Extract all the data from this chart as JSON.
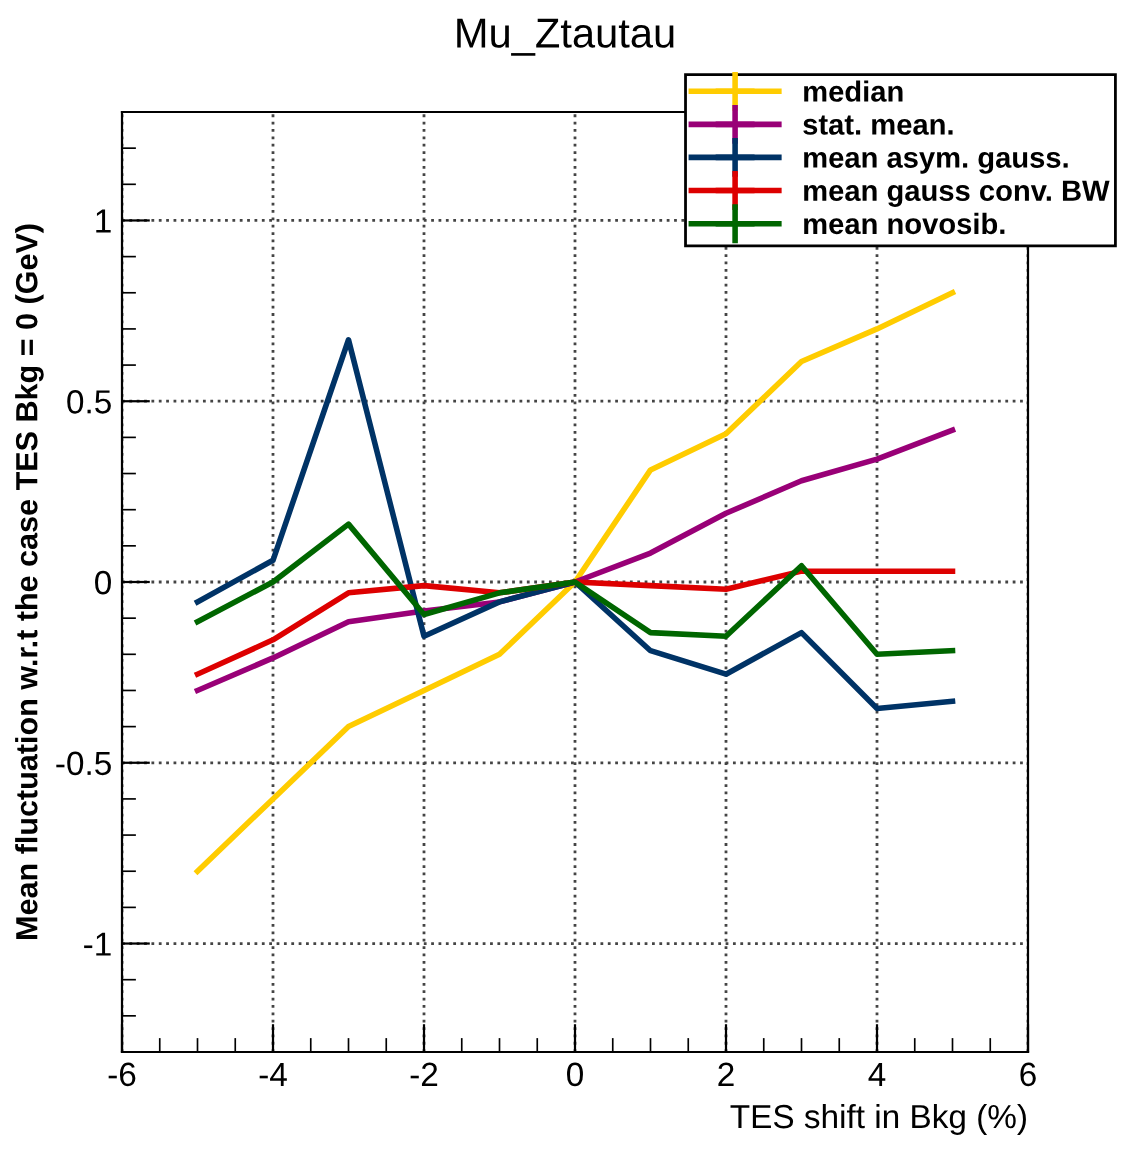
{
  "chart_data": {
    "type": "line",
    "title": "Mu_Ztautau",
    "xlabel": "TES shift in Bkg (%)",
    "ylabel": "Mean fluctuation w.r.t the case TES Bkg = 0 (GeV)",
    "x": [
      -5,
      -4,
      -3,
      -2,
      -1,
      0,
      1,
      2,
      3,
      4,
      5
    ],
    "series": [
      {
        "name": "median",
        "color": "#ffcc00",
        "values": [
          -0.8,
          -0.6,
          -0.4,
          -0.3,
          -0.2,
          0,
          0.31,
          0.41,
          0.61,
          0.7,
          0.8
        ]
      },
      {
        "name": "stat. mean.",
        "color": "#990077",
        "values": [
          -0.3,
          -0.21,
          -0.11,
          -0.08,
          -0.055,
          0,
          0.08,
          0.19,
          0.28,
          0.34,
          0.42
        ]
      },
      {
        "name": "mean asym. gauss.",
        "color": "#003366",
        "values": [
          -0.055,
          0.06,
          0.67,
          -0.15,
          -0.055,
          0,
          -0.19,
          -0.255,
          -0.14,
          -0.35,
          -0.33
        ]
      },
      {
        "name": "mean gauss conv. BW",
        "color": "#dd0000",
        "values": [
          -0.255,
          -0.16,
          -0.03,
          -0.01,
          -0.03,
          0,
          -0.01,
          -0.02,
          0.03,
          0.03,
          0.03
        ]
      },
      {
        "name": "mean novosib.",
        "color": "#006600",
        "values": [
          -0.11,
          0,
          0.16,
          -0.09,
          -0.03,
          0,
          -0.14,
          -0.15,
          0.045,
          -0.2,
          -0.19
        ]
      }
    ],
    "xlim": [
      -6,
      6
    ],
    "xticks": [
      -6,
      -4,
      -2,
      0,
      2,
      4,
      6
    ],
    "ylim": [
      -1.3,
      1.3
    ],
    "yticks": [
      -1,
      -0.5,
      0,
      0.5,
      1
    ],
    "grid": true,
    "legend": "top right",
    "marker": "none",
    "line_style": "solid"
  }
}
